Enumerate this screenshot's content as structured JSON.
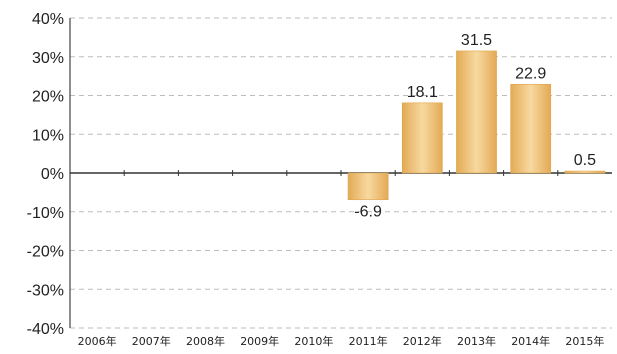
{
  "chart_data": {
    "type": "bar",
    "categories": [
      "2006年",
      "2007年",
      "2008年",
      "2009年",
      "2010年",
      "2011年",
      "2012年",
      "2013年",
      "2014年",
      "2015年"
    ],
    "values": [
      null,
      null,
      null,
      null,
      null,
      -6.9,
      18.1,
      31.5,
      22.9,
      0.5
    ],
    "data_labels": [
      "",
      "",
      "",
      "",
      "",
      "-6.9",
      "18.1",
      "31.5",
      "22.9",
      "0.5"
    ],
    "ylim": [
      -40,
      40
    ],
    "yticks": [
      40,
      30,
      20,
      10,
      0,
      -10,
      -20,
      -30,
      -40
    ],
    "ytick_labels": [
      "40%",
      "30%",
      "20%",
      "10%",
      "0%",
      "-10%",
      "-20%",
      "-30%",
      "-40%"
    ],
    "grid": true,
    "title": "",
    "xlabel": "",
    "ylabel": "",
    "bar_color": "#F2C77E",
    "bar_color_dark": "#E0A54A"
  }
}
